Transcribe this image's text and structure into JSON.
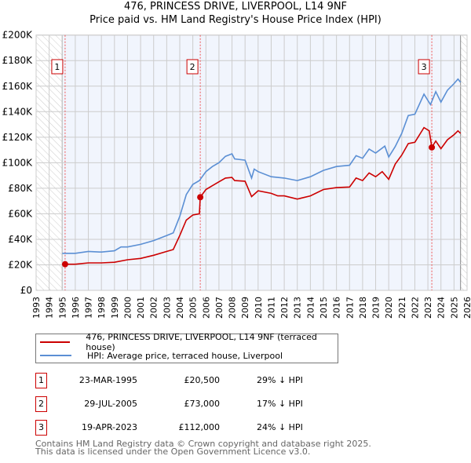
{
  "chart_data": {
    "type": "line",
    "title": "476, PRINCESS DRIVE, LIVERPOOL, L14 9NF",
    "subtitle": "Price paid vs. HM Land Registry's House Price Index (HPI)",
    "xlim": [
      1993,
      2026
    ],
    "ylim": [
      0,
      200000
    ],
    "grid": true,
    "x_ticks": [
      "1993",
      "1994",
      "1995",
      "1996",
      "1997",
      "1998",
      "1999",
      "2000",
      "2001",
      "2002",
      "2003",
      "2004",
      "2005",
      "2006",
      "2007",
      "2008",
      "2009",
      "2010",
      "2011",
      "2012",
      "2013",
      "2014",
      "2015",
      "2016",
      "2017",
      "2018",
      "2019",
      "2020",
      "2021",
      "2022",
      "2023",
      "2024",
      "2025",
      "2026"
    ],
    "y_ticks": [
      {
        "v": 0,
        "label": "£0"
      },
      {
        "v": 20000,
        "label": "£20K"
      },
      {
        "v": 40000,
        "label": "£40K"
      },
      {
        "v": 60000,
        "label": "£60K"
      },
      {
        "v": 80000,
        "label": "£80K"
      },
      {
        "v": 100000,
        "label": "£100K"
      },
      {
        "v": 120000,
        "label": "£120K"
      },
      {
        "v": 140000,
        "label": "£140K"
      },
      {
        "v": 160000,
        "label": "£160K"
      },
      {
        "v": 180000,
        "label": "£180K"
      },
      {
        "v": 200000,
        "label": "£200K"
      }
    ],
    "shaded_range": [
      1995.0,
      2025.5
    ],
    "series": [
      {
        "name": "476, PRINCESS DRIVE, LIVERPOOL, L14 9NF (terraced house)",
        "color": "#cc0000",
        "points": [
          [
            1995.22,
            20500
          ],
          [
            1996,
            20500
          ],
          [
            1997,
            21500
          ],
          [
            1998,
            21500
          ],
          [
            1999,
            22000
          ],
          [
            2000,
            24000
          ],
          [
            2001,
            25000
          ],
          [
            2002,
            27500
          ],
          [
            2003,
            30500
          ],
          [
            2003.5,
            32000
          ],
          [
            2004,
            43000
          ],
          [
            2004.5,
            55000
          ],
          [
            2005,
            59000
          ],
          [
            2005.5,
            60000
          ],
          [
            2005.57,
            73000
          ],
          [
            2006,
            79000
          ],
          [
            2006.5,
            82000
          ],
          [
            2007,
            85000
          ],
          [
            2007.5,
            88000
          ],
          [
            2008,
            88500
          ],
          [
            2008.2,
            86000
          ],
          [
            2009,
            85500
          ],
          [
            2009.5,
            73500
          ],
          [
            2010,
            78000
          ],
          [
            2011,
            76000
          ],
          [
            2011.5,
            74000
          ],
          [
            2012,
            74000
          ],
          [
            2013,
            71500
          ],
          [
            2014,
            74000
          ],
          [
            2015,
            79000
          ],
          [
            2016,
            80500
          ],
          [
            2017,
            81000
          ],
          [
            2017.5,
            88000
          ],
          [
            2018,
            86000
          ],
          [
            2018.5,
            92000
          ],
          [
            2019,
            89000
          ],
          [
            2019.5,
            93000
          ],
          [
            2020,
            87000
          ],
          [
            2020.5,
            99000
          ],
          [
            2021,
            106000
          ],
          [
            2021.5,
            115000
          ],
          [
            2022,
            116000
          ],
          [
            2022.7,
            127500
          ],
          [
            2023.1,
            125000
          ],
          [
            2023.3,
            112000
          ],
          [
            2023.6,
            117000
          ],
          [
            2024,
            111000
          ],
          [
            2024.5,
            118000
          ],
          [
            2025,
            122000
          ],
          [
            2025.3,
            125000
          ],
          [
            2025.5,
            123000
          ]
        ]
      },
      {
        "name": "HPI: Average price, terraced house, Liverpool",
        "color": "#5b8fd4",
        "points": [
          [
            1995,
            29000
          ],
          [
            1996,
            29000
          ],
          [
            1997,
            30500
          ],
          [
            1998,
            30000
          ],
          [
            1999,
            31000
          ],
          [
            1999.5,
            34000
          ],
          [
            2000,
            34000
          ],
          [
            2001,
            36000
          ],
          [
            2002,
            39000
          ],
          [
            2003,
            43000
          ],
          [
            2003.5,
            45000
          ],
          [
            2004,
            58000
          ],
          [
            2004.5,
            75000
          ],
          [
            2005,
            83000
          ],
          [
            2005.5,
            86000
          ],
          [
            2006,
            93000
          ],
          [
            2006.5,
            97000
          ],
          [
            2007,
            100000
          ],
          [
            2007.5,
            105000
          ],
          [
            2008,
            107000
          ],
          [
            2008.2,
            103000
          ],
          [
            2009,
            102000
          ],
          [
            2009.5,
            88000
          ],
          [
            2009.7,
            95000
          ],
          [
            2010,
            93000
          ],
          [
            2011,
            89000
          ],
          [
            2012,
            88000
          ],
          [
            2013,
            86000
          ],
          [
            2014,
            89000
          ],
          [
            2015,
            94000
          ],
          [
            2016,
            97000
          ],
          [
            2017,
            98000
          ],
          [
            2017.5,
            105500
          ],
          [
            2018,
            103500
          ],
          [
            2018.5,
            110700
          ],
          [
            2019,
            107600
          ],
          [
            2019.7,
            113000
          ],
          [
            2020,
            104500
          ],
          [
            2020.5,
            112700
          ],
          [
            2021,
            123000
          ],
          [
            2021.5,
            137000
          ],
          [
            2022,
            138000
          ],
          [
            2022.7,
            153700
          ],
          [
            2023.2,
            145500
          ],
          [
            2023.6,
            155700
          ],
          [
            2024,
            147500
          ],
          [
            2024.5,
            156800
          ],
          [
            2025,
            162000
          ],
          [
            2025.3,
            165600
          ],
          [
            2025.5,
            163000
          ]
        ]
      }
    ],
    "markers": [
      {
        "label": "1",
        "x": 1995.22,
        "y": 20500
      },
      {
        "label": "2",
        "x": 2005.57,
        "y": 73000
      },
      {
        "label": "3",
        "x": 2023.3,
        "y": 112000
      }
    ]
  },
  "legend": {
    "items": [
      "476, PRINCESS DRIVE, LIVERPOOL, L14 9NF (terraced house)",
      "HPI: Average price, terraced house, Liverpool"
    ]
  },
  "transactions": [
    {
      "num": "1",
      "date": "23-MAR-1995",
      "price": "£20,500",
      "hpi": "29% ↓ HPI"
    },
    {
      "num": "2",
      "date": "29-JUL-2005",
      "price": "£73,000",
      "hpi": "17% ↓ HPI"
    },
    {
      "num": "3",
      "date": "19-APR-2023",
      "price": "£112,000",
      "hpi": "24% ↓ HPI"
    }
  ],
  "footer": {
    "line1": "Contains HM Land Registry data © Crown copyright and database right 2025.",
    "line2": "This data is licensed under the Open Government Licence v3.0."
  }
}
